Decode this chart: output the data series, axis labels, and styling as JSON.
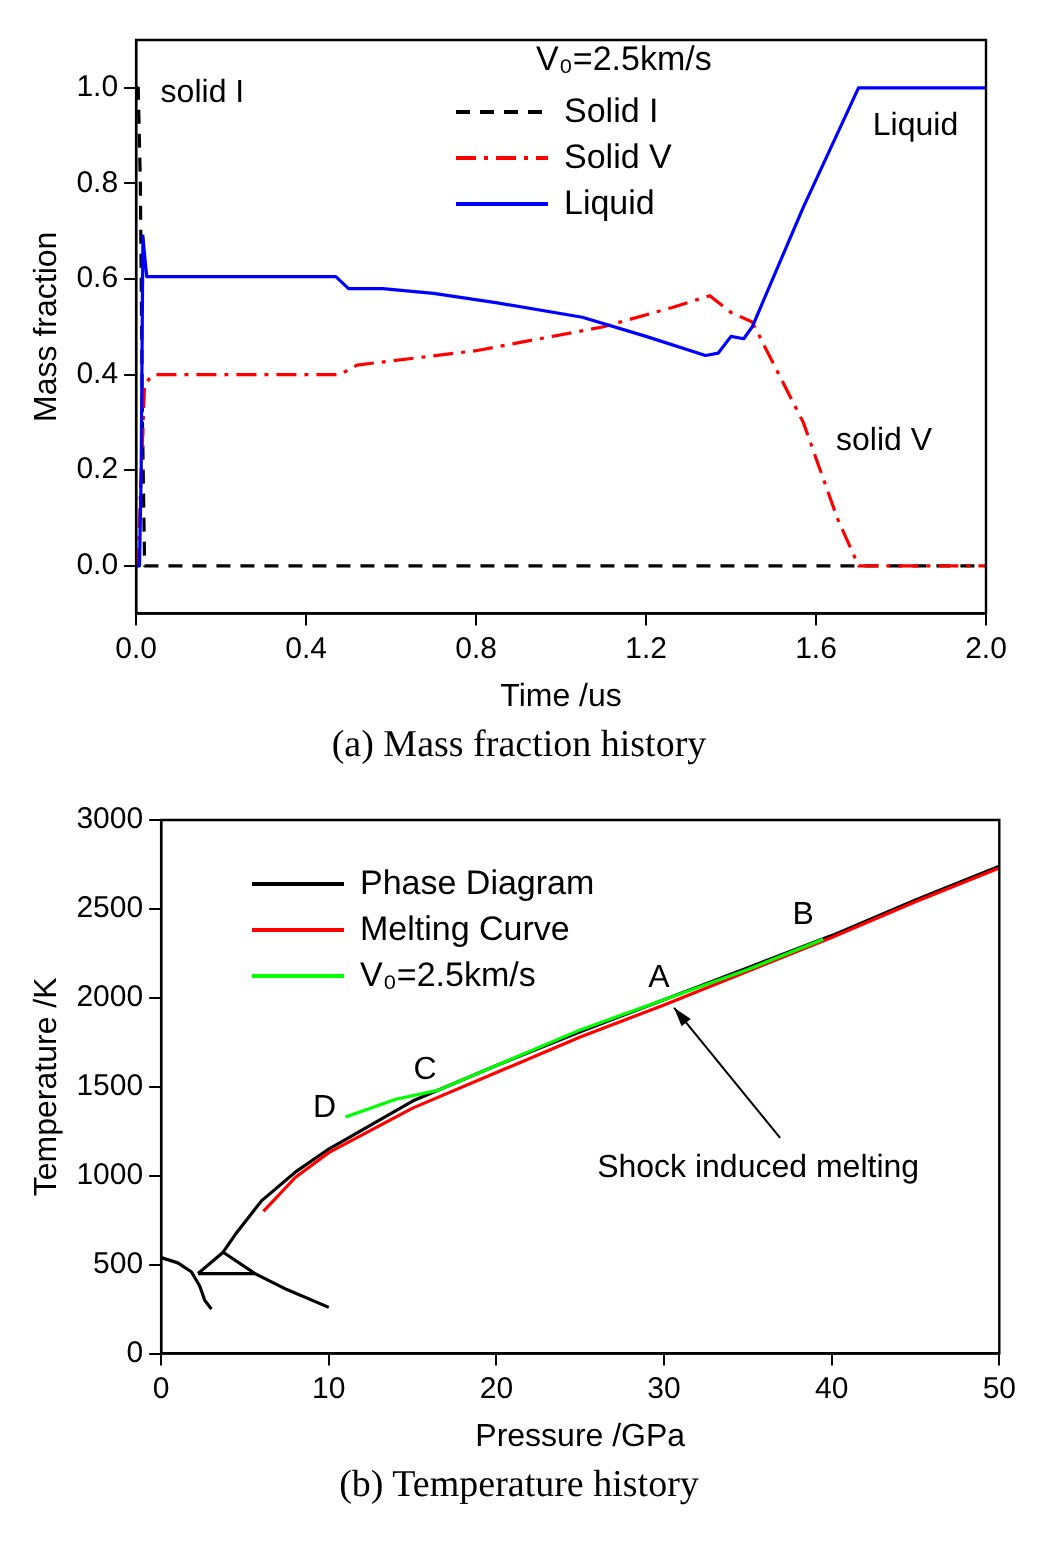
{
  "chart_data": [
    {
      "type": "line",
      "xlabel": "Time /us",
      "ylabel": "Mass fraction",
      "legend_title": "V₀=2.5km/s",
      "legend": "top",
      "grid": false,
      "marker": "none",
      "xlim": [
        0,
        2
      ],
      "xticks": [
        {
          "value": 0,
          "label": "0.0"
        },
        0.4,
        0.8,
        1.2,
        1.6,
        {
          "value": 2,
          "label": "2.0"
        }
      ],
      "ylim": [
        -0.1,
        1.1
      ],
      "yticks": [
        {
          "value": 0,
          "label": "0.0"
        },
        0.2,
        0.4,
        0.6,
        0.8,
        {
          "value": 1,
          "label": "1.0"
        }
      ],
      "series": [
        {
          "name": "Solid I",
          "color": "#000000",
          "line_style": "dashed",
          "x": [
            0,
            0.005,
            0.01,
            0.015,
            0.02,
            2.0
          ],
          "values": [
            1.0,
            1.0,
            0.8,
            0.3,
            0,
            0
          ]
        },
        {
          "name": "Solid V",
          "color": "#ff0000",
          "line_style": "dashdot",
          "x": [
            0,
            0.005,
            0.01,
            0.02,
            0.04,
            0.3,
            0.48,
            0.52,
            0.8,
            1.1,
            1.26,
            1.35,
            1.4,
            1.45,
            1.57,
            1.65,
            1.7,
            2.0
          ],
          "values": [
            0,
            0,
            0.15,
            0.38,
            0.4,
            0.4,
            0.4,
            0.42,
            0.45,
            0.5,
            0.54,
            0.565,
            0.53,
            0.51,
            0.3,
            0.1,
            0,
            0
          ]
        },
        {
          "name": "Liquid",
          "color": "#0000ff",
          "line_style": "solid",
          "x": [
            0,
            0.008,
            0.012,
            0.016,
            0.02,
            0.025,
            0.47,
            0.5,
            0.58,
            0.7,
            0.85,
            1.05,
            1.2,
            1.34,
            1.37,
            1.4,
            1.43,
            1.45,
            1.57,
            1.7,
            2.0
          ],
          "values": [
            0,
            0,
            0.2,
            0.69,
            0.65,
            0.605,
            0.605,
            0.58,
            0.58,
            0.57,
            0.55,
            0.52,
            0.48,
            0.44,
            0.445,
            0.48,
            0.475,
            0.5,
            0.75,
            1.0,
            1.0
          ]
        }
      ],
      "annotations": [
        "solid I",
        "Liquid",
        "solid V",
        "(a) Mass fraction history"
      ]
    },
    {
      "type": "line",
      "xlabel": "Pressure /GPa",
      "ylabel": "Temperature /K",
      "legend": "top left",
      "grid": false,
      "marker": "none",
      "xlim": [
        0,
        50
      ],
      "xticks": [
        0,
        10,
        20,
        30,
        40,
        50
      ],
      "ylim": [
        0,
        3000
      ],
      "yticks": [
        0,
        500,
        1000,
        1500,
        2000,
        2500,
        3000
      ],
      "series": [
        {
          "name": "Phase Diagram",
          "color": "#000000",
          "line_style": "solid",
          "x": [
            3.7,
            4.5,
            6,
            8,
            10,
            15,
            20,
            25,
            30,
            35,
            40,
            45,
            50
          ],
          "values": [
            570,
            680,
            860,
            1020,
            1150,
            1420,
            1620,
            1810,
            1990,
            2170,
            2350,
            2550,
            2740
          ]
        },
        {
          "color": "#000000",
          "line_style": "solid",
          "x": [
            0,
            1,
            1.8,
            2.3,
            2.6,
            3.0
          ],
          "values": [
            540,
            510,
            460,
            380,
            300,
            250
          ]
        },
        {
          "color": "#000000",
          "line_style": "solid",
          "x": [
            2.2,
            3.7,
            5.6,
            7.5,
            10
          ],
          "values": [
            450,
            570,
            450,
            360,
            260
          ]
        },
        {
          "color": "#000000",
          "line_style": "solid",
          "x": [
            2.2,
            5.6
          ],
          "values": [
            450,
            450
          ]
        },
        {
          "name": "Melting Curve",
          "color": "#ff0000",
          "line_style": "solid",
          "x": [
            6.1,
            8,
            10,
            15,
            20,
            25,
            30,
            35,
            40,
            45,
            50
          ],
          "values": [
            800,
            990,
            1130,
            1380,
            1580,
            1780,
            1960,
            2150,
            2340,
            2540,
            2730
          ]
        },
        {
          "name": "V₀=2.5km/s",
          "color": "#00ff00",
          "line_style": "solid",
          "x": [
            11,
            14,
            16.5,
            20,
            25,
            30,
            35,
            39.5
          ],
          "values": [
            1330,
            1430,
            1480,
            1620,
            1820,
            1990,
            2160,
            2330
          ]
        }
      ],
      "annotations": [
        "A",
        "B",
        "C",
        "D",
        {
          "text": "Shock induced melting",
          "x": 30.6,
          "y": 1944
        },
        "(b) Temperature history"
      ]
    }
  ]
}
